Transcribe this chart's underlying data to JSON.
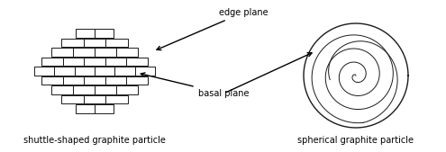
{
  "left_label": "shuttle-shaped graphite particle",
  "right_label": "spherical graphite particle",
  "edge_plane_label": "edge plane",
  "basal_plane_label": "basal plane",
  "bg_color": "#ffffff",
  "lw": 0.7,
  "brick_color": "#ffffff",
  "brick_edge_color": "#1a1a1a",
  "arrow_color": "#000000",
  "figw": 4.95,
  "figh": 1.69,
  "dpi": 100
}
